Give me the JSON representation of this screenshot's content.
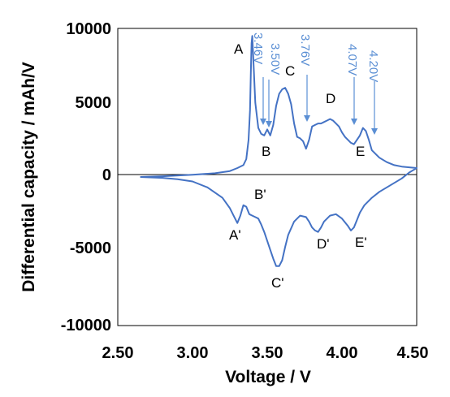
{
  "chart_data": {
    "type": "line",
    "xlabel": "Voltage / V",
    "ylabel": "Differential capacity / mAh/V",
    "xlim": [
      2.5,
      4.5
    ],
    "ylim": [
      -10000,
      10000
    ],
    "xticks": [
      "2.50",
      "3.00",
      "3.50",
      "4.00",
      "4.50"
    ],
    "yticks": [
      "10000",
      "5000",
      "0",
      "-5000",
      "-10000"
    ],
    "grid": false,
    "series": [
      {
        "color": "#4472C4",
        "x": [
          2.65,
          2.8,
          3.0,
          3.15,
          3.25,
          3.3,
          3.34,
          3.36,
          3.375,
          3.385,
          3.39,
          3.395,
          3.4,
          3.42,
          3.44,
          3.46,
          3.48,
          3.5,
          3.52,
          3.54,
          3.56,
          3.58,
          3.6,
          3.62,
          3.64,
          3.66,
          3.68,
          3.7,
          3.72,
          3.74,
          3.76,
          3.78,
          3.8,
          3.82,
          3.84,
          3.86,
          3.88,
          3.9,
          3.92,
          3.94,
          3.96,
          3.98,
          4.0,
          4.02,
          4.04,
          4.06,
          4.08,
          4.1,
          4.12,
          4.14,
          4.16,
          4.18,
          4.2,
          4.25,
          4.3,
          4.35,
          4.4,
          4.45,
          4.5,
          4.45,
          4.4,
          4.35,
          4.3,
          4.25,
          4.2,
          4.15,
          4.12,
          4.1,
          4.08,
          4.06,
          4.04,
          4.0,
          3.96,
          3.92,
          3.88,
          3.86,
          3.84,
          3.82,
          3.8,
          3.78,
          3.76,
          3.72,
          3.68,
          3.64,
          3.62,
          3.6,
          3.58,
          3.56,
          3.54,
          3.52,
          3.5,
          3.48,
          3.46,
          3.44,
          3.42,
          3.4,
          3.38,
          3.36,
          3.34,
          3.32,
          3.3,
          3.28,
          3.25,
          3.2,
          3.1,
          3.0,
          2.9,
          2.8,
          2.7,
          2.65
        ],
        "y": [
          0,
          50,
          150,
          250,
          400,
          600,
          800,
          1200,
          2500,
          4500,
          7000,
          9000,
          9500,
          5000,
          3300,
          2900,
          2800,
          3200,
          2800,
          3500,
          4800,
          5600,
          5900,
          6000,
          5600,
          4900,
          3600,
          2700,
          2600,
          2400,
          1900,
          2500,
          3400,
          3500,
          3600,
          3600,
          3700,
          3800,
          3900,
          3800,
          3600,
          3400,
          3000,
          2700,
          2500,
          2300,
          2200,
          2500,
          2800,
          3300,
          3100,
          2500,
          1800,
          1300,
          1000,
          800,
          700,
          650,
          600,
          300,
          -100,
          -400,
          -700,
          -1000,
          -1400,
          -1900,
          -2400,
          -2900,
          -3400,
          -3600,
          -3300,
          -2800,
          -2500,
          -2600,
          -3000,
          -3400,
          -3700,
          -3600,
          -3400,
          -3000,
          -2700,
          -2600,
          -3000,
          -3900,
          -4700,
          -5600,
          -6000,
          -6000,
          -5500,
          -4900,
          -4300,
          -3700,
          -3200,
          -2800,
          -2700,
          -2600,
          -2500,
          -2000,
          -1900,
          -2600,
          -3100,
          -2700,
          -2100,
          -1400,
          -700,
          -300,
          -150,
          -60,
          -20,
          0
        ]
      }
    ],
    "annotations": {
      "peak_labels": [
        "A",
        "B",
        "C",
        "D",
        "E",
        "A'",
        "B'",
        "C'",
        "D'",
        "E'"
      ],
      "voltage_markers": [
        "3.46V",
        "3.50V",
        "3.76V",
        "4.07V",
        "4.20V"
      ]
    }
  },
  "colors": {
    "series": "#4472C4",
    "axis": "#000000",
    "marker": "#5B8FD4"
  }
}
